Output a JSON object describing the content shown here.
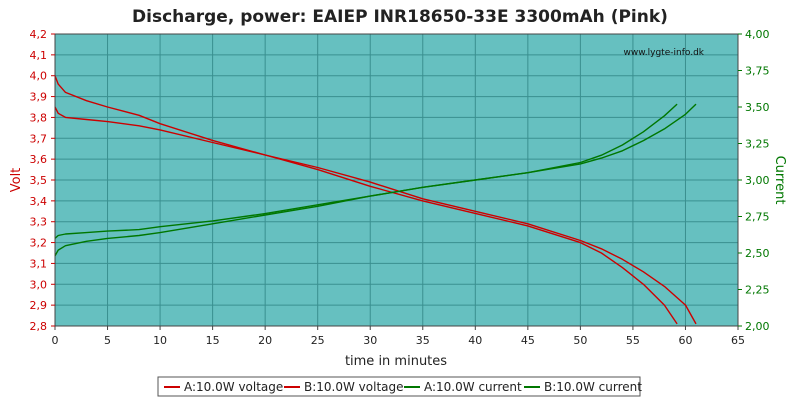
{
  "chart_data": {
    "type": "line",
    "title": "Discharge, power: EAIEP INR18650-33E 3300mAh (Pink)",
    "watermark": "www.lygte-info.dk",
    "xlabel": "time in minutes",
    "ylabel_left": "Volt",
    "ylabel_right": "Current",
    "xlim": [
      0,
      65
    ],
    "ylim_left": [
      2.8,
      4.2
    ],
    "ylim_right": [
      2.0,
      4.0
    ],
    "x_ticks": [
      "0",
      "5",
      "10",
      "15",
      "20",
      "25",
      "30",
      "35",
      "40",
      "45",
      "50",
      "55",
      "60",
      "65"
    ],
    "y_left_ticks": [
      "2,8",
      "2,9",
      "3,0",
      "3,1",
      "3,2",
      "3,3",
      "3,4",
      "3,5",
      "3,6",
      "3,7",
      "3,8",
      "3,9",
      "4,0",
      "4,1",
      "4,2"
    ],
    "y_right_ticks": [
      "2,00",
      "2,25",
      "2,50",
      "2,75",
      "3,00",
      "3,25",
      "3,50",
      "3,75",
      "4,00"
    ],
    "grid": true,
    "plot_background": "#66c0c0",
    "left_axis_color": "#cc0000",
    "right_axis_color": "#007700",
    "series": [
      {
        "name": "A:10.0W voltage",
        "axis": "left",
        "color": "#cc0000",
        "x": [
          0,
          0.3,
          1,
          3,
          5,
          8,
          10,
          15,
          20,
          25,
          30,
          35,
          40,
          45,
          50,
          52,
          54,
          56,
          58,
          59.2
        ],
        "y": [
          3.85,
          3.82,
          3.8,
          3.79,
          3.78,
          3.76,
          3.74,
          3.68,
          3.62,
          3.55,
          3.47,
          3.4,
          3.34,
          3.28,
          3.2,
          3.15,
          3.08,
          3.0,
          2.9,
          2.81
        ]
      },
      {
        "name": "B:10.0W voltage",
        "axis": "left",
        "color": "#cc0000",
        "x": [
          0,
          0.3,
          1,
          3,
          5,
          8,
          10,
          15,
          20,
          25,
          30,
          35,
          40,
          45,
          50,
          52,
          54,
          56,
          58,
          60,
          61
        ],
        "y": [
          4.0,
          3.96,
          3.92,
          3.88,
          3.85,
          3.81,
          3.77,
          3.69,
          3.62,
          3.56,
          3.49,
          3.41,
          3.35,
          3.29,
          3.21,
          3.17,
          3.12,
          3.06,
          2.99,
          2.9,
          2.81
        ]
      },
      {
        "name": "A:10.0W current",
        "axis": "right",
        "color": "#007700",
        "x": [
          0,
          0.3,
          1,
          3,
          5,
          8,
          10,
          15,
          20,
          25,
          30,
          35,
          40,
          45,
          50,
          52,
          54,
          56,
          58,
          59.2
        ],
        "y": [
          2.6,
          2.62,
          2.63,
          2.64,
          2.65,
          2.66,
          2.68,
          2.72,
          2.77,
          2.83,
          2.89,
          2.95,
          3.0,
          3.05,
          3.12,
          3.17,
          3.24,
          3.33,
          3.44,
          3.52
        ]
      },
      {
        "name": "B:10.0W current",
        "axis": "right",
        "color": "#007700",
        "x": [
          0,
          0.3,
          1,
          3,
          5,
          8,
          10,
          15,
          20,
          25,
          30,
          35,
          40,
          45,
          50,
          52,
          54,
          56,
          58,
          60,
          61
        ],
        "y": [
          2.48,
          2.52,
          2.55,
          2.58,
          2.6,
          2.62,
          2.64,
          2.7,
          2.76,
          2.82,
          2.89,
          2.95,
          3.0,
          3.05,
          3.11,
          3.15,
          3.2,
          3.27,
          3.35,
          3.45,
          3.52
        ]
      }
    ],
    "legend": {
      "placement": "bottom",
      "items": [
        {
          "label": "A:10.0W voltage",
          "color": "#cc0000"
        },
        {
          "label": "B:10.0W voltage",
          "color": "#cc0000"
        },
        {
          "label": "A:10.0W current",
          "color": "#007700"
        },
        {
          "label": "B:10.0W current",
          "color": "#007700"
        }
      ]
    }
  }
}
